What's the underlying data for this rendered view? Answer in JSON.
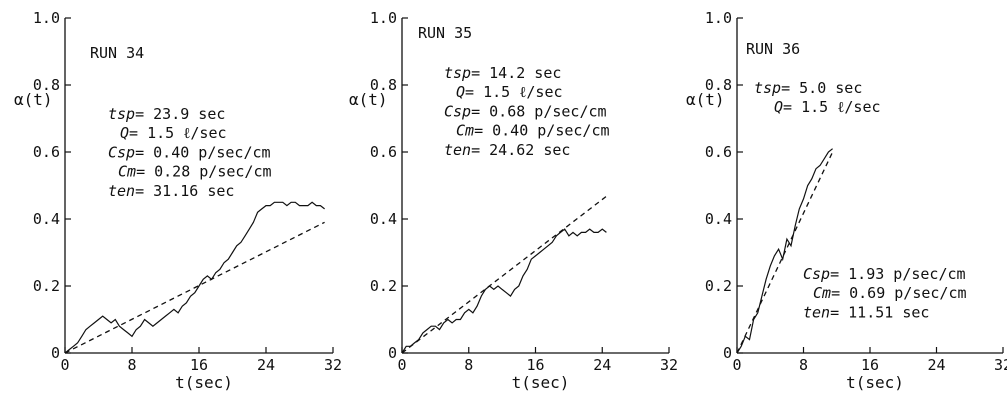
{
  "chart_data": [
    {
      "type": "line",
      "title": "RUN 34",
      "xlabel": "t(sec)",
      "ylabel": "α(t)",
      "xlim": [
        0,
        32
      ],
      "ylim": [
        0,
        1.0
      ],
      "x_ticks": [
        "0",
        "8",
        "16",
        "24",
        "32"
      ],
      "y_ticks": [
        "0",
        "0.2",
        "0.4",
        "0.6",
        "0.8",
        "1.0"
      ],
      "params": [
        {
          "name": "tsp",
          "value": "= 23.9 sec"
        },
        {
          "name": "Q",
          "value": "= 1.5 ℓ/sec"
        },
        {
          "name": "Csp",
          "value": "= 0.40 p/sec/cm"
        },
        {
          "name": "Cm",
          "value": "= 0.28 p/sec/cm"
        },
        {
          "name": "ten",
          "value": "= 31.16 sec"
        }
      ],
      "series": [
        {
          "style": "solid",
          "x": [
            0,
            0.5,
            1,
            1.5,
            2,
            2.5,
            3,
            3.5,
            4,
            4.5,
            5,
            5.5,
            6,
            6.5,
            7,
            7.5,
            8,
            8.5,
            9,
            9.5,
            10,
            10.5,
            11,
            11.5,
            12,
            12.5,
            13,
            13.5,
            14,
            14.5,
            15,
            15.5,
            16,
            16.5,
            17,
            17.5,
            18,
            18.5,
            19,
            19.5,
            20,
            20.5,
            21,
            21.5,
            22,
            22.5,
            23,
            23.5,
            24,
            24.5,
            25,
            25.5,
            26,
            26.5,
            27,
            27.5,
            28,
            28.5,
            29,
            29.5,
            30,
            30.5,
            31
          ],
          "y": [
            0,
            0.01,
            0.02,
            0.03,
            0.05,
            0.07,
            0.08,
            0.09,
            0.1,
            0.11,
            0.1,
            0.09,
            0.1,
            0.08,
            0.07,
            0.06,
            0.05,
            0.07,
            0.08,
            0.1,
            0.09,
            0.08,
            0.09,
            0.1,
            0.11,
            0.12,
            0.13,
            0.12,
            0.14,
            0.15,
            0.17,
            0.18,
            0.2,
            0.22,
            0.23,
            0.22,
            0.24,
            0.25,
            0.27,
            0.28,
            0.3,
            0.32,
            0.33,
            0.35,
            0.37,
            0.39,
            0.42,
            0.43,
            0.44,
            0.44,
            0.45,
            0.45,
            0.45,
            0.44,
            0.45,
            0.45,
            0.44,
            0.44,
            0.44,
            0.45,
            0.44,
            0.44,
            0.43
          ]
        },
        {
          "style": "dashed",
          "x": [
            0,
            31
          ],
          "y": [
            0,
            0.39
          ]
        }
      ]
    },
    {
      "type": "line",
      "title": "RUN 35",
      "xlabel": "t(sec)",
      "ylabel": "α(t)",
      "xlim": [
        0,
        32
      ],
      "ylim": [
        0,
        1.0
      ],
      "x_ticks": [
        "0",
        "8",
        "16",
        "24",
        "32"
      ],
      "y_ticks": [
        "0",
        "0.2",
        "0.4",
        "0.6",
        "0.8",
        "1.0"
      ],
      "params": [
        {
          "name": "tsp",
          "value": "= 14.2 sec"
        },
        {
          "name": "Q",
          "value": "= 1.5 ℓ/sec"
        },
        {
          "name": "Csp",
          "value": "= 0.68 p/sec/cm"
        },
        {
          "name": "Cm",
          "value": "= 0.40 p/sec/cm"
        },
        {
          "name": "ten",
          "value": "= 24.62 sec"
        }
      ],
      "series": [
        {
          "style": "solid",
          "x": [
            0,
            0.5,
            1,
            1.5,
            2,
            2.5,
            3,
            3.5,
            4,
            4.5,
            5,
            5.5,
            6,
            6.5,
            7,
            7.5,
            8,
            8.5,
            9,
            9.5,
            10,
            10.5,
            11,
            11.5,
            12,
            12.5,
            13,
            13.5,
            14,
            14.5,
            15,
            15.5,
            16,
            16.5,
            17,
            17.5,
            18,
            18.5,
            19,
            19.5,
            20,
            20.5,
            21,
            21.5,
            22,
            22.5,
            23,
            23.5,
            24,
            24.5
          ],
          "y": [
            0,
            0.02,
            0.02,
            0.03,
            0.04,
            0.06,
            0.07,
            0.08,
            0.08,
            0.07,
            0.09,
            0.1,
            0.09,
            0.1,
            0.1,
            0.12,
            0.13,
            0.12,
            0.14,
            0.17,
            0.19,
            0.2,
            0.19,
            0.2,
            0.19,
            0.18,
            0.17,
            0.19,
            0.2,
            0.23,
            0.25,
            0.28,
            0.29,
            0.3,
            0.31,
            0.32,
            0.33,
            0.35,
            0.36,
            0.37,
            0.35,
            0.36,
            0.35,
            0.36,
            0.36,
            0.37,
            0.36,
            0.36,
            0.37,
            0.36
          ]
        },
        {
          "style": "dashed",
          "x": [
            0,
            24.6
          ],
          "y": [
            0,
            0.47
          ]
        }
      ]
    },
    {
      "type": "line",
      "title": "RUN 36",
      "xlabel": "t(sec)",
      "ylabel": "α(t)",
      "xlim": [
        0,
        32
      ],
      "ylim": [
        0,
        1.0
      ],
      "x_ticks": [
        "0",
        "8",
        "16",
        "24",
        "32"
      ],
      "y_ticks": [
        "0",
        "0.2",
        "0.4",
        "0.6",
        "0.8",
        "1.0"
      ],
      "params": [
        {
          "name": "tsp",
          "value": "= 5.0 sec"
        },
        {
          "name": "Q",
          "value": "= 1.5 ℓ/sec"
        }
      ],
      "params_lower": [
        {
          "name": "Csp",
          "value": "= 1.93 p/sec/cm"
        },
        {
          "name": "Cm",
          "value": "= 0.69 p/sec/cm"
        },
        {
          "name": "ten",
          "value": "= 11.51 sec"
        }
      ],
      "series": [
        {
          "style": "solid",
          "x": [
            0,
            0.5,
            1,
            1.5,
            2,
            2.5,
            3,
            3.5,
            4,
            4.5,
            5,
            5.5,
            6,
            6.5,
            7,
            7.5,
            8,
            8.5,
            9,
            9.5,
            10,
            10.5,
            11,
            11.5
          ],
          "y": [
            0,
            0.02,
            0.05,
            0.04,
            0.1,
            0.12,
            0.17,
            0.22,
            0.26,
            0.29,
            0.31,
            0.28,
            0.34,
            0.32,
            0.38,
            0.43,
            0.46,
            0.5,
            0.52,
            0.55,
            0.56,
            0.58,
            0.6,
            0.61
          ]
        },
        {
          "style": "dashed",
          "x": [
            0,
            11.5
          ],
          "y": [
            0,
            0.6
          ]
        }
      ]
    }
  ]
}
